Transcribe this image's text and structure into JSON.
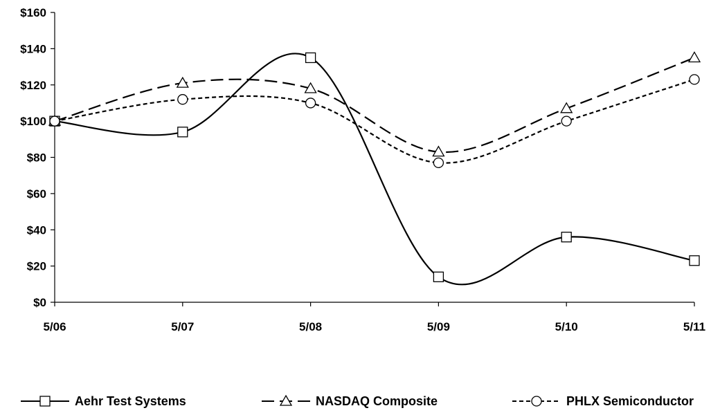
{
  "chart_data": {
    "type": "line",
    "categories": [
      "5/06",
      "5/07",
      "5/08",
      "5/09",
      "5/10",
      "5/11"
    ],
    "ylim": [
      0,
      160
    ],
    "yticks": [
      0,
      20,
      40,
      60,
      80,
      100,
      120,
      140,
      160
    ],
    "ytick_labels": [
      "$0",
      "$20",
      "$40",
      "$60",
      "$80",
      "$100",
      "$120",
      "$140",
      "$160"
    ],
    "grid": false,
    "legend_position": "bottom",
    "series": [
      {
        "name": "Aehr Test Systems",
        "values": [
          100,
          94,
          135,
          14,
          36,
          23
        ],
        "marker": "square",
        "dash": "solid",
        "color": "#000000"
      },
      {
        "name": "NASDAQ Composite",
        "values": [
          100,
          121,
          118,
          83,
          107,
          135
        ],
        "marker": "triangle",
        "dash": "long-dash",
        "color": "#000000"
      },
      {
        "name": "PHLX Semiconductor",
        "values": [
          100,
          112,
          110,
          77,
          100,
          123
        ],
        "marker": "circle",
        "dash": "short-dash",
        "color": "#000000"
      }
    ]
  }
}
